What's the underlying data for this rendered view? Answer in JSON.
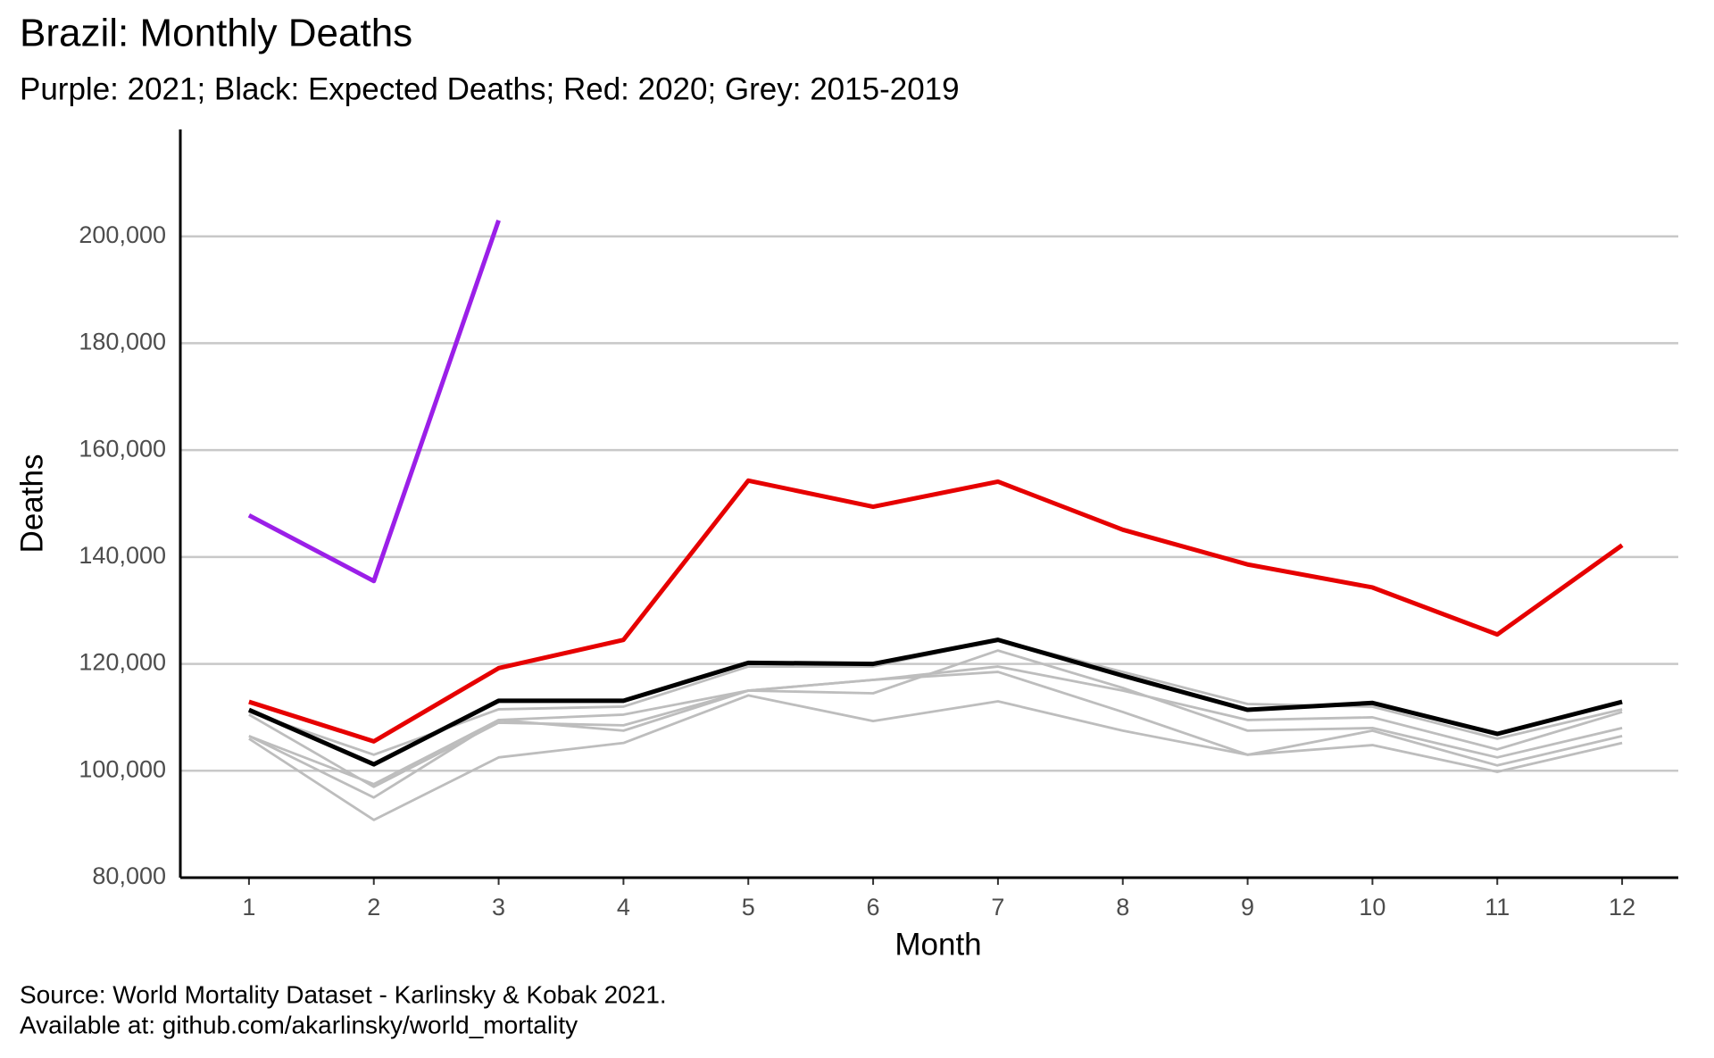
{
  "chart_data": {
    "type": "line",
    "title": "Brazil: Monthly Deaths",
    "subtitle": "Purple: 2021; Black: Expected Deaths; Red: 2020; Grey: 2015-2019",
    "xlabel": "Month",
    "ylabel": "Deaths",
    "caption": [
      "Source: World Mortality Dataset - Karlinsky & Kobak 2021.",
      "Available at: github.com/akarlinsky/world_mortality"
    ],
    "x": [
      1,
      2,
      3,
      4,
      5,
      6,
      7,
      8,
      9,
      10,
      11,
      12
    ],
    "xlim": [
      0.45,
      12.45
    ],
    "xticks": [
      1,
      2,
      3,
      4,
      5,
      6,
      7,
      8,
      9,
      10,
      11,
      12
    ],
    "ylim": [
      80000,
      220000
    ],
    "yticks": [
      {
        "value": 80000,
        "label": "80,000"
      },
      {
        "value": 100000,
        "label": "100,000"
      },
      {
        "value": 120000,
        "label": "120,000"
      },
      {
        "value": 140000,
        "label": "140,000"
      },
      {
        "value": 160000,
        "label": "160,000"
      },
      {
        "value": 180000,
        "label": "180,000"
      },
      {
        "value": 200000,
        "label": "200,000"
      }
    ],
    "grid": true,
    "series": [
      {
        "color": "#bdbdbd",
        "values": [
          106000,
          90800,
          102500,
          105200,
          114100,
          109300,
          113000,
          107500,
          103000,
          104800,
          99800,
          105200
        ]
      },
      {
        "color": "#bdbdbd",
        "values": [
          106500,
          95000,
          109500,
          107500,
          115000,
          117000,
          118500,
          111000,
          103000,
          107500,
          101000,
          106500
        ]
      },
      {
        "color": "#bdbdbd",
        "values": [
          110500,
          97000,
          109000,
          108500,
          115000,
          114500,
          122500,
          115500,
          107500,
          108000,
          102500,
          108000
        ]
      },
      {
        "color": "#bdbdbd",
        "values": [
          106500,
          97500,
          109500,
          110500,
          115000,
          117000,
          119500,
          115000,
          109500,
          110000,
          104000,
          111000
        ]
      },
      {
        "color": "#bdbdbd",
        "values": [
          111000,
          103000,
          111500,
          112000,
          119500,
          119500,
          124500,
          118500,
          112500,
          112000,
          106000,
          111500
        ]
      },
      {
        "color": "#000000",
        "values": [
          111400,
          101200,
          113100,
          113100,
          120200,
          120000,
          124500,
          117800,
          111400,
          112700,
          106900,
          112900
        ]
      },
      {
        "color": "#e60000",
        "values": [
          112900,
          105500,
          119200,
          124500,
          154300,
          149400,
          154100,
          145100,
          138600,
          134300,
          125500,
          142200
        ]
      },
      {
        "color": "#9b1fe8",
        "values": [
          147800,
          135500,
          203000,
          null,
          null,
          null,
          null,
          null,
          null,
          null,
          null,
          null
        ]
      }
    ]
  }
}
